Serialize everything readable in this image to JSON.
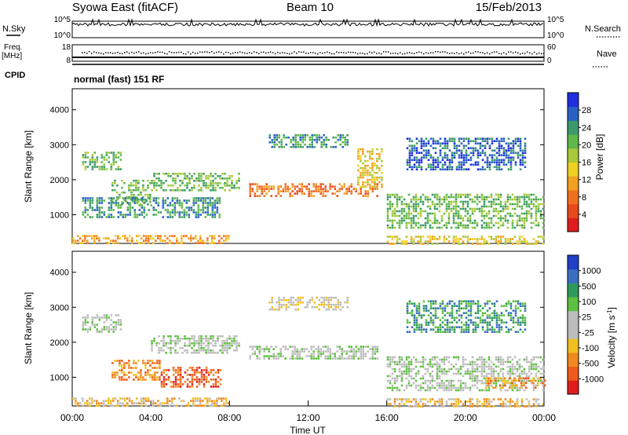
{
  "header": {
    "title": "Syowa East (fitACF)",
    "beam": "Beam 10",
    "date": "15/Feb/2013"
  },
  "top_panels": {
    "nsky": {
      "label": "N.Sky",
      "ticks": [
        "10^5",
        "10^0"
      ]
    },
    "nsearch": {
      "label": "N.Search",
      "ticks": [
        "10^5",
        "10^0"
      ]
    },
    "freq": {
      "label_top": "Freq.",
      "label_unit": "[MHz]",
      "ticks": [
        "18",
        "8"
      ]
    },
    "nave": {
      "label": "Nave",
      "ticks": [
        "60",
        "0"
      ]
    },
    "cpid": {
      "label": "CPID",
      "value": "normal (fast) 151 RF"
    }
  },
  "chart_data": [
    {
      "type": "heatmap",
      "panel": "power",
      "xlabel": "",
      "ylabel": "Slant Range [km]",
      "xlim": [
        "00:00",
        "24:00"
      ],
      "ylim": [
        180,
        4600
      ],
      "y_ticks": [
        "1000",
        "2000",
        "3000",
        "4000"
      ],
      "colorbar": {
        "label": "Power [dB]",
        "ticks": [
          "4",
          "8",
          "12",
          "16",
          "20",
          "24",
          "28"
        ],
        "colors": [
          "#1f2fe0",
          "#2a62c4",
          "#3c9a6a",
          "#5fb84a",
          "#a9c93a",
          "#f0d020",
          "#f2a020",
          "#f07020",
          "#e84a1c",
          "#e01c1c"
        ]
      },
      "regions": [
        {
          "t0": 0.0,
          "t1": 8.0,
          "r0": 180,
          "r1": 420,
          "level": 6
        },
        {
          "t0": 16.0,
          "t1": 24.0,
          "r0": 180,
          "r1": 400,
          "level": 5
        },
        {
          "t0": 9.0,
          "t1": 15.5,
          "r0": 1500,
          "r1": 1900,
          "level": 7
        },
        {
          "t0": 2.0,
          "t1": 4.0,
          "r0": 1300,
          "r1": 2000,
          "level": 3
        },
        {
          "t0": 0.5,
          "t1": 2.5,
          "r0": 2300,
          "r1": 2800,
          "level": 3
        },
        {
          "t0": 4.0,
          "t1": 8.5,
          "r0": 1700,
          "r1": 2200,
          "level": 3
        },
        {
          "t0": 10.0,
          "t1": 14.0,
          "r0": 2900,
          "r1": 3300,
          "level": 2
        },
        {
          "t0": 14.5,
          "t1": 15.8,
          "r0": 1800,
          "r1": 2900,
          "level": 5
        },
        {
          "t0": 16.0,
          "t1": 24.0,
          "r0": 600,
          "r1": 1600,
          "level": 3
        },
        {
          "t0": 17.0,
          "t1": 23.0,
          "r0": 2300,
          "r1": 3200,
          "level": 1
        },
        {
          "t0": 0.5,
          "t1": 7.5,
          "r0": 900,
          "r1": 1500,
          "level": 2
        }
      ]
    },
    {
      "type": "heatmap",
      "panel": "velocity",
      "xlabel": "Time UT",
      "ylabel": "Slant Range [km]",
      "xlim": [
        "00:00",
        "24:00"
      ],
      "ylim": [
        180,
        4600
      ],
      "x_ticks": [
        "00:00",
        "04:00",
        "08:00",
        "12:00",
        "16:00",
        "20:00",
        "00:00"
      ],
      "y_ticks": [
        "1000",
        "2000",
        "3000",
        "4000"
      ],
      "colorbar": {
        "label": "Velocity [m s^-1]",
        "ticks": [
          "1000",
          "500",
          "100",
          "25",
          "-25",
          "-100",
          "-500",
          "-1000"
        ],
        "colors": [
          "#2040c8",
          "#3a6ec0",
          "#2e9a5c",
          "#5fc040",
          "#bdbdbd",
          "#bdbdbd",
          "#f0c020",
          "#f08a20",
          "#f05a1c",
          "#e01c1c"
        ]
      },
      "regions": [
        {
          "t0": 0.0,
          "t1": 8.0,
          "r0": 180,
          "r1": 420,
          "level": 6
        },
        {
          "t0": 16.0,
          "t1": 24.0,
          "r0": 180,
          "r1": 400,
          "level": 6
        },
        {
          "t0": 9.0,
          "t1": 15.5,
          "r0": 1500,
          "r1": 1900,
          "level": 4
        },
        {
          "t0": 2.0,
          "t1": 4.5,
          "r0": 900,
          "r1": 1500,
          "level": 7
        },
        {
          "t0": 4.5,
          "t1": 7.5,
          "r0": 700,
          "r1": 1300,
          "level": 8
        },
        {
          "t0": 0.5,
          "t1": 2.5,
          "r0": 2300,
          "r1": 2800,
          "level": 4
        },
        {
          "t0": 4.0,
          "t1": 8.5,
          "r0": 1700,
          "r1": 2200,
          "level": 4
        },
        {
          "t0": 10.0,
          "t1": 14.0,
          "r0": 2900,
          "r1": 3300,
          "level": 5
        },
        {
          "t0": 16.0,
          "t1": 24.0,
          "r0": 600,
          "r1": 1600,
          "level": 4
        },
        {
          "t0": 17.0,
          "t1": 23.0,
          "r0": 2300,
          "r1": 3200,
          "level": 2
        },
        {
          "t0": 21.0,
          "t1": 24.0,
          "r0": 700,
          "r1": 1000,
          "level": 7
        }
      ]
    }
  ]
}
